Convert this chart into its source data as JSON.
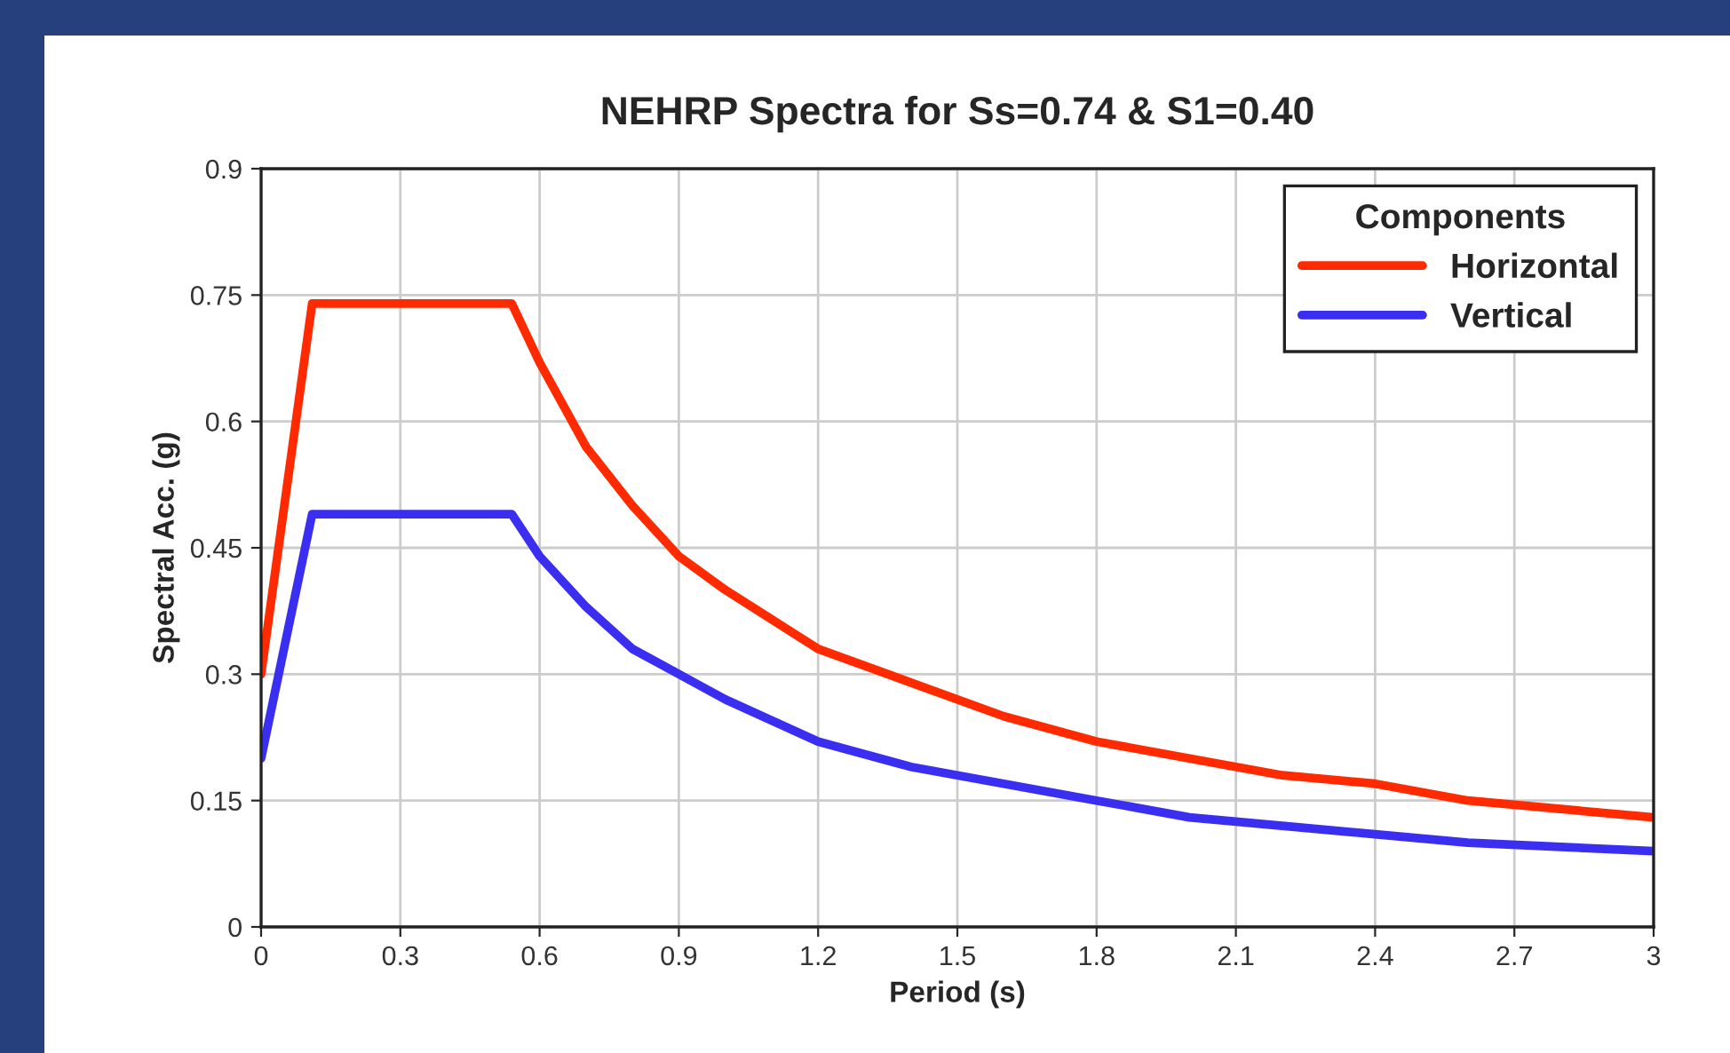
{
  "chart_data": {
    "type": "line",
    "title": "NEHRP Spectra for Ss=0.74 & S1=0.40",
    "xlabel": "Period (s)",
    "ylabel": "Spectral Acc. (g)",
    "legend_title": "Components",
    "x": [
      0,
      0.11,
      0.54,
      0.6,
      0.7,
      0.8,
      0.9,
      1.0,
      1.2,
      1.4,
      1.6,
      1.8,
      2.0,
      2.2,
      2.4,
      2.6,
      2.8,
      3.0
    ],
    "series": [
      {
        "name": "Horizontal",
        "color": "#ff2a00",
        "values": [
          0.3,
          0.74,
          0.74,
          0.67,
          0.57,
          0.5,
          0.44,
          0.4,
          0.33,
          0.29,
          0.25,
          0.22,
          0.2,
          0.18,
          0.17,
          0.15,
          0.14,
          0.13
        ]
      },
      {
        "name": "Vertical",
        "color": "#3a2ff0",
        "values": [
          0.2,
          0.49,
          0.49,
          0.44,
          0.38,
          0.33,
          0.3,
          0.27,
          0.22,
          0.19,
          0.17,
          0.15,
          0.13,
          0.12,
          0.11,
          0.1,
          0.095,
          0.09
        ]
      }
    ],
    "xlim": [
      0,
      3
    ],
    "xticks": [
      0,
      0.3,
      0.6,
      0.9,
      1.2,
      1.5,
      1.8,
      2.1,
      2.4,
      2.7,
      3
    ],
    "ylim": [
      0,
      0.9
    ],
    "yticks": [
      0,
      0.15,
      0.3,
      0.45,
      0.6,
      0.75,
      0.9
    ],
    "grid": true,
    "legend": "top right",
    "marker": "none",
    "line_style": "solid"
  }
}
